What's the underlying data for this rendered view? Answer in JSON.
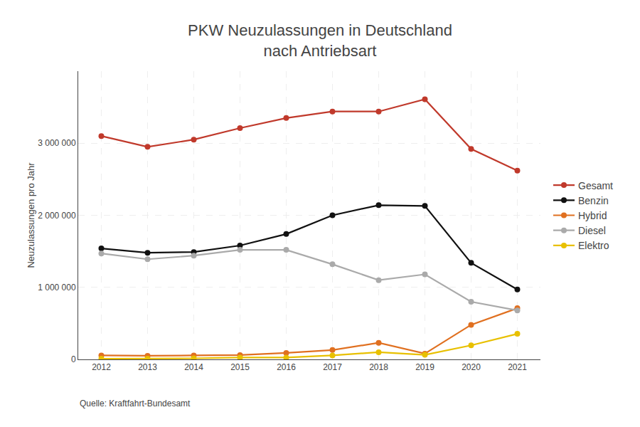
{
  "chart_data": {
    "type": "line",
    "title": "PKW Neuzulassungen in Deutschland\nnach Antriebsart",
    "ylabel": "Neuzulassungen pro Jahr",
    "annotations": [
      "Quelle: Kraftfahrt-Bundesamt"
    ],
    "x": [
      2012,
      2013,
      2014,
      2015,
      2016,
      2017,
      2018,
      2019,
      2020,
      2021
    ],
    "series": [
      {
        "name": "Gesamt",
        "color": "#c0392b",
        "values": [
          3100000,
          2950000,
          3050000,
          3210000,
          3350000,
          3440000,
          3440000,
          3610000,
          2920000,
          2620000
        ]
      },
      {
        "name": "Benzin",
        "color": "#111111",
        "values": [
          1540000,
          1480000,
          1490000,
          1580000,
          1740000,
          2000000,
          2140000,
          2130000,
          1340000,
          970000
        ]
      },
      {
        "name": "Hybrid",
        "color": "#e07020",
        "values": [
          55000,
          50000,
          55000,
          60000,
          90000,
          130000,
          230000,
          80000,
          480000,
          710000
        ]
      },
      {
        "name": "Diesel",
        "color": "#aaaaaa",
        "values": [
          1470000,
          1390000,
          1440000,
          1520000,
          1520000,
          1320000,
          1100000,
          1180000,
          800000,
          680000
        ]
      },
      {
        "name": "Elektro",
        "color": "#e8c000",
        "values": [
          10000,
          10000,
          15000,
          25000,
          25000,
          55000,
          100000,
          63000,
          195000,
          355000
        ]
      }
    ],
    "xlim": [
      2011.5,
      2021.5
    ],
    "xticks": [
      2012,
      2013,
      2014,
      2015,
      2016,
      2017,
      2018,
      2019,
      2020,
      2021
    ],
    "ylim": [
      0,
      4000000
    ],
    "yticks": [
      0,
      {
        "value": 1000000,
        "label": "1 000 000"
      },
      {
        "value": 2000000,
        "label": "2 000 000"
      },
      {
        "value": 3000000,
        "label": "3 000 000"
      }
    ],
    "grid": true,
    "legend": "right",
    "marker": "circle",
    "line_style": "solid"
  }
}
